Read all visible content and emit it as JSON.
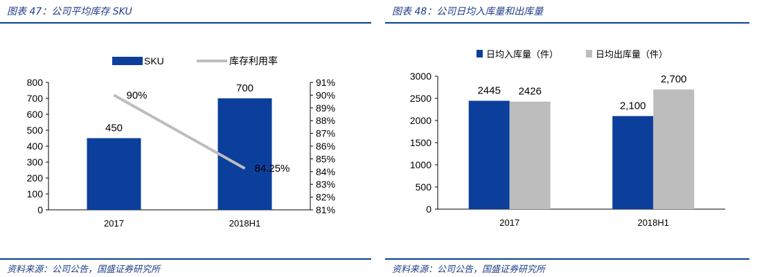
{
  "left_panel": {
    "title": "图表 47：公司平均库存 SKU",
    "source": "资料来源：公司公告，国盛证券研究所"
  },
  "right_panel": {
    "title": "图表 48：公司日均入库量和出库量",
    "source": "资料来源：公司公告，国盛证券研究所"
  },
  "colors": {
    "navy": "#0c3f9c",
    "gray": "#bdbdbd",
    "rule": "#0b3d91",
    "title": "#1f3c88"
  },
  "chart_data": [
    {
      "type": "bar",
      "categories": [
        "2017",
        "2018H1"
      ],
      "series": [
        {
          "name": "SKU",
          "kind": "bar",
          "axis": "left",
          "values": [
            450,
            700
          ],
          "labels": [
            "450",
            "700"
          ]
        },
        {
          "name": "库存利用率",
          "kind": "line",
          "axis": "right",
          "values": [
            90,
            84.25
          ],
          "labels": [
            "90%",
            "84.25%"
          ]
        }
      ],
      "ylim": [
        0,
        800
      ],
      "yticks": [
        "0",
        "100",
        "200",
        "300",
        "400",
        "500",
        "600",
        "700",
        "800"
      ],
      "y2lim": [
        81,
        91
      ],
      "y2ticks": [
        "81%",
        "82%",
        "83%",
        "84%",
        "85%",
        "86%",
        "87%",
        "88%",
        "89%",
        "90%",
        "91%"
      ],
      "legend": "top",
      "grid": false
    },
    {
      "type": "bar",
      "categories": [
        "2017",
        "2018H1"
      ],
      "series": [
        {
          "name": "日均入库量（件）",
          "values": [
            2445,
            2100
          ],
          "labels": [
            "2445",
            "2,100"
          ]
        },
        {
          "name": "日均出库量（件）",
          "values": [
            2426,
            2700
          ],
          "labels": [
            "2426",
            "2,700"
          ]
        }
      ],
      "ylim": [
        0,
        3000
      ],
      "yticks": [
        "0",
        "500",
        "1000",
        "1500",
        "2000",
        "2500",
        "3000"
      ],
      "legend": "top",
      "grid": false
    }
  ]
}
